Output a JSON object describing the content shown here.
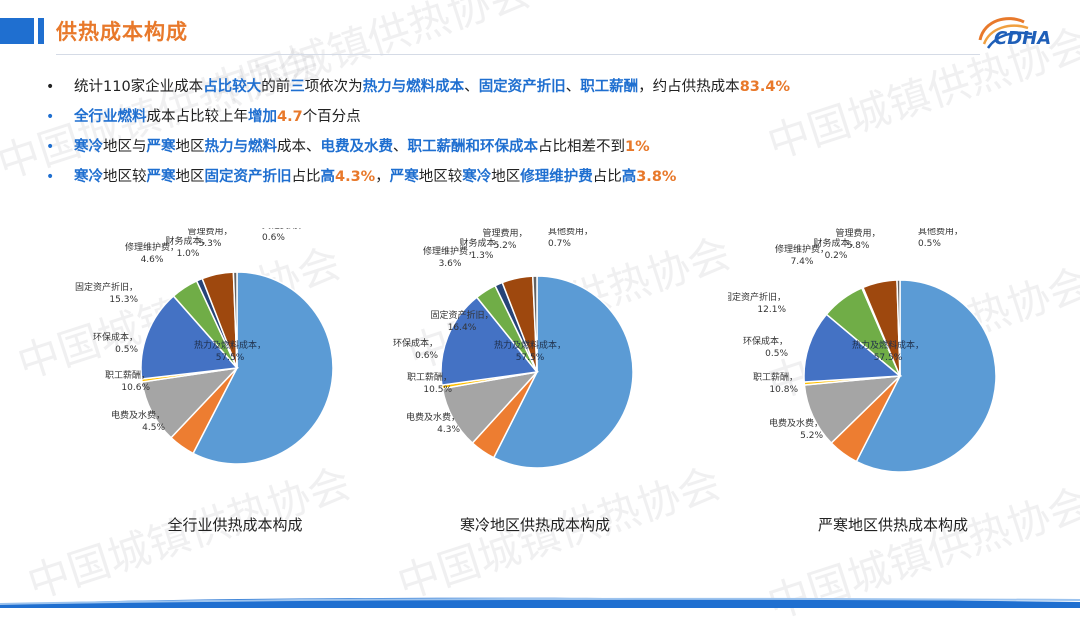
{
  "header": {
    "title": "供热成本构成",
    "logo_text": "CDHA"
  },
  "watermark_text": "中国城镇供热协会",
  "colors": {
    "accent_blue": "#1f6fd0",
    "accent_orange": "#e8792b"
  },
  "bullets": [
    [
      {
        "t": "统计110家企业成本",
        "s": "n"
      },
      {
        "t": "占比较大",
        "s": "b"
      },
      {
        "t": "的前",
        "s": "n"
      },
      {
        "t": "三",
        "s": "b"
      },
      {
        "t": "项依次为",
        "s": "n"
      },
      {
        "t": "热力与燃料成本",
        "s": "b"
      },
      {
        "t": "、",
        "s": "n"
      },
      {
        "t": "固定资产折旧",
        "s": "b"
      },
      {
        "t": "、",
        "s": "n"
      },
      {
        "t": "职工薪酬",
        "s": "b"
      },
      {
        "t": "，约占供热成本",
        "s": "n"
      },
      {
        "t": "83.4%",
        "s": "o"
      }
    ],
    [
      {
        "t": "全行业燃料",
        "s": "b"
      },
      {
        "t": "成本占比较上年",
        "s": "n"
      },
      {
        "t": "增加",
        "s": "b"
      },
      {
        "t": "4.7",
        "s": "o"
      },
      {
        "t": "个百分点",
        "s": "n"
      }
    ],
    [
      {
        "t": "寒冷",
        "s": "b"
      },
      {
        "t": "地区与",
        "s": "n"
      },
      {
        "t": "严寒",
        "s": "b"
      },
      {
        "t": "地区",
        "s": "n"
      },
      {
        "t": "热力与燃料",
        "s": "b"
      },
      {
        "t": "成本、",
        "s": "n"
      },
      {
        "t": "电费及水费",
        "s": "b"
      },
      {
        "t": "、",
        "s": "n"
      },
      {
        "t": "职工薪酬和环保成本",
        "s": "b"
      },
      {
        "t": "占比相差不到",
        "s": "n"
      },
      {
        "t": "1%",
        "s": "o"
      }
    ],
    [
      {
        "t": "寒冷",
        "s": "b"
      },
      {
        "t": "地区较",
        "s": "n"
      },
      {
        "t": "严寒",
        "s": "b"
      },
      {
        "t": "地区",
        "s": "n"
      },
      {
        "t": "固定资产折旧",
        "s": "b"
      },
      {
        "t": "占比",
        "s": "n"
      },
      {
        "t": "高",
        "s": "b"
      },
      {
        "t": "4.3%",
        "s": "o"
      },
      {
        "t": "，",
        "s": "n"
      },
      {
        "t": "严寒",
        "s": "b"
      },
      {
        "t": "地区较",
        "s": "n"
      },
      {
        "t": "寒冷",
        "s": "b"
      },
      {
        "t": "地区",
        "s": "n"
      },
      {
        "t": "修理维护费",
        "s": "b"
      },
      {
        "t": "占比",
        "s": "n"
      },
      {
        "t": "高",
        "s": "b"
      },
      {
        "t": "3.8%",
        "s": "o"
      }
    ]
  ],
  "chart_data": [
    {
      "type": "pie",
      "title": "全行业供热成本构成",
      "slices": [
        {
          "label": "热力及燃料成本",
          "value": 57.5,
          "color": "#5b9bd5"
        },
        {
          "label": "电费及水费",
          "value": 4.5,
          "color": "#ed7d31"
        },
        {
          "label": "职工薪酬",
          "value": 10.6,
          "color": "#a5a5a5"
        },
        {
          "label": "环保成本",
          "value": 0.5,
          "color": "#ffc000"
        },
        {
          "label": "固定资产折旧",
          "value": 15.3,
          "color": "#4472c4"
        },
        {
          "label": "修理维护费",
          "value": 4.6,
          "color": "#70ad47"
        },
        {
          "label": "财务成本",
          "value": 1.0,
          "color": "#264478"
        },
        {
          "label": "管理费用",
          "value": 5.3,
          "color": "#9e480e"
        },
        {
          "label": "其他费用",
          "value": 0.6,
          "color": "#636363"
        }
      ]
    },
    {
      "type": "pie",
      "title": "寒冷地区供热成本构成",
      "slices": [
        {
          "label": "热力及燃料成本",
          "value": 57.5,
          "color": "#5b9bd5"
        },
        {
          "label": "电费及水费",
          "value": 4.3,
          "color": "#ed7d31"
        },
        {
          "label": "职工薪酬",
          "value": 10.5,
          "color": "#a5a5a5"
        },
        {
          "label": "环保成本",
          "value": 0.6,
          "color": "#ffc000"
        },
        {
          "label": "固定资产折旧",
          "value": 16.4,
          "color": "#4472c4"
        },
        {
          "label": "修理维护费",
          "value": 3.6,
          "color": "#70ad47"
        },
        {
          "label": "财务成本",
          "value": 1.3,
          "color": "#264478"
        },
        {
          "label": "管理费用",
          "value": 5.2,
          "color": "#9e480e"
        },
        {
          "label": "其他费用",
          "value": 0.7,
          "color": "#636363"
        }
      ]
    },
    {
      "type": "pie",
      "title": "严寒地区供热成本构成",
      "slices": [
        {
          "label": "热力及燃料成本",
          "value": 57.5,
          "color": "#5b9bd5"
        },
        {
          "label": "电费及水费",
          "value": 5.2,
          "color": "#ed7d31"
        },
        {
          "label": "职工薪酬",
          "value": 10.8,
          "color": "#a5a5a5"
        },
        {
          "label": "环保成本",
          "value": 0.5,
          "color": "#ffc000"
        },
        {
          "label": "固定资产折旧",
          "value": 12.1,
          "color": "#4472c4"
        },
        {
          "label": "修理维护费",
          "value": 7.4,
          "color": "#70ad47"
        },
        {
          "label": "财务成本",
          "value": 0.2,
          "color": "#264478"
        },
        {
          "label": "管理费用",
          "value": 5.8,
          "color": "#9e480e"
        },
        {
          "label": "其他费用",
          "value": 0.5,
          "color": "#636363"
        }
      ]
    }
  ]
}
